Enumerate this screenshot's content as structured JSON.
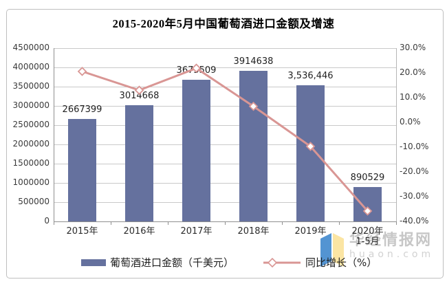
{
  "title": "2015-2020年5月中国葡萄酒进口金额及增速",
  "legend": {
    "bar_label": "葡萄酒进口金额（千美元）",
    "line_label": "同比增长（%）"
  },
  "watermark": {
    "site_name": "华经情报网",
    "domain": "huaon.com",
    "logo_icon": "open-book-icon",
    "logo_colors": {
      "left_page": "#5394D2",
      "right_page": "#FBE5A3"
    }
  },
  "chart_data": {
    "type": "bar",
    "subtype": "combo-bar-line",
    "title": "2015-2020年5月中国葡萄酒进口金额及增速",
    "categories": [
      "2015年",
      "2016年",
      "2017年",
      "2018年",
      "2019年",
      "2020年"
    ],
    "category_sublabels": [
      "",
      "",
      "",
      "",
      "",
      "1-5月"
    ],
    "series": [
      {
        "name": "葡萄酒进口金额（千美元）",
        "type": "bar",
        "axis": "left",
        "values": [
          2667399,
          3014668,
          3675509,
          3914638,
          3536446,
          890529
        ],
        "value_labels": [
          "2667399",
          "3014668",
          "3675509",
          "3914638",
          "3,536,446",
          "890529"
        ],
        "color": "#65719E"
      },
      {
        "name": "同比增长（%）",
        "type": "line",
        "axis": "right",
        "values": [
          20.6,
          13.0,
          21.9,
          6.5,
          -9.7,
          -35.8
        ],
        "color": "#D99694",
        "marker": "diamond",
        "marker_fill": "#FFFFFF"
      }
    ],
    "left_axis": {
      "min": 0,
      "max": 4500000,
      "step": 500000,
      "tick_labels": [
        "4500000",
        "4000000",
        "3500000",
        "3000000",
        "2500000",
        "2000000",
        "1500000",
        "1000000",
        "500000",
        "0"
      ]
    },
    "right_axis": {
      "min": -40,
      "max": 30,
      "step": 10,
      "tick_labels": [
        "30.0%",
        "20.0%",
        "10.0%",
        "0.0%",
        "-10.0%",
        "-20.0%",
        "-30.0%",
        "-40.0%"
      ]
    },
    "grid": true,
    "legend_position": "bottom"
  }
}
